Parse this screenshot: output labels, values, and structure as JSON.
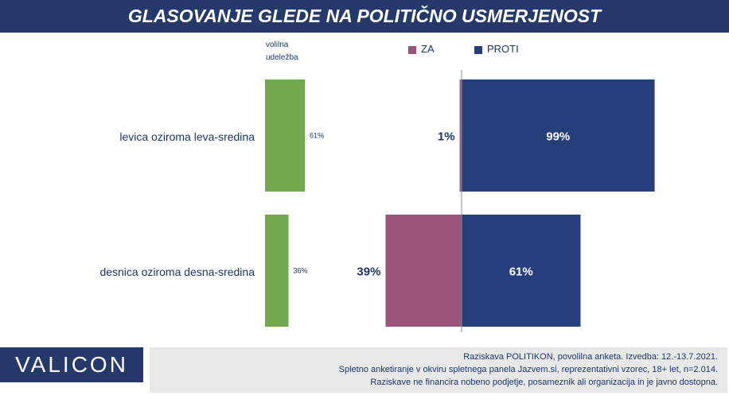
{
  "title": "GLASOVANJE GLEDE NA POLITIČNO USMERJENOST",
  "turnout_header_line1": "volilna",
  "turnout_header_line2": "udeležba",
  "logo_text": "VALICON",
  "footer": [
    "Raziskava POLITIKON, povolilna anketa. Izvedba: 12.-13.7.2021.",
    "Spletno anketiranje v okviru spletnega panela Jazvem.si, reprezentativni vzorec, 18+ let, n=2.014.",
    "Raziskave ne financira nobeno podjetje, posameznik ali organizacija in je javno dostopna."
  ],
  "colors": {
    "header_bg": "#253a6b",
    "turnout": "#72a84e",
    "za": "#9b5479",
    "proti": "#263f7a"
  },
  "chart_data": {
    "type": "bar",
    "title": "GLASOVANJE GLEDE NA POLITIČNO USMERJENOST",
    "categories": [
      "levica oziroma leva-sredina",
      "desnica oziroma desna-sredina"
    ],
    "turnout": {
      "name": "volilna udeležba",
      "values": [
        61,
        36
      ],
      "labels": [
        "61%",
        "36%"
      ]
    },
    "series": [
      {
        "name": "ZA",
        "values": [
          1,
          39
        ],
        "labels": [
          "1%",
          "39%"
        ]
      },
      {
        "name": "PROTI",
        "values": [
          99,
          61
        ],
        "labels": [
          "99%",
          "61%"
        ]
      }
    ],
    "unit": "%",
    "legend": "top"
  }
}
